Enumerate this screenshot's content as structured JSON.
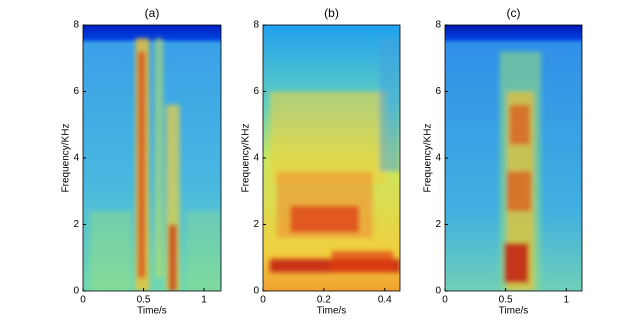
{
  "chart_data": [
    {
      "type": "spectrogram",
      "title": "(a)",
      "xlabel": "Time/s",
      "ylabel": "Frequency/KHz",
      "xlim": [
        0,
        1.14
      ],
      "ylim": [
        0,
        8
      ],
      "xticks": [
        0,
        0.5,
        1
      ],
      "yticks": [
        0,
        2,
        4,
        6,
        8
      ]
    },
    {
      "type": "spectrogram",
      "title": "(b)",
      "xlabel": "Time/s",
      "ylabel": "Frequency/KHz",
      "xlim": [
        0,
        0.45
      ],
      "ylim": [
        0,
        8
      ],
      "xticks": [
        0,
        0.2,
        0.4
      ],
      "yticks": [
        0,
        2,
        4,
        6,
        8
      ]
    },
    {
      "type": "spectrogram",
      "title": "(c)",
      "xlabel": "Time/s",
      "ylabel": "Frequency/KHz",
      "xlim": [
        0,
        1.13
      ],
      "ylim": [
        0,
        8
      ],
      "xticks": [
        0,
        0.5,
        1
      ],
      "yticks": [
        0,
        2,
        4,
        6,
        8
      ]
    }
  ]
}
